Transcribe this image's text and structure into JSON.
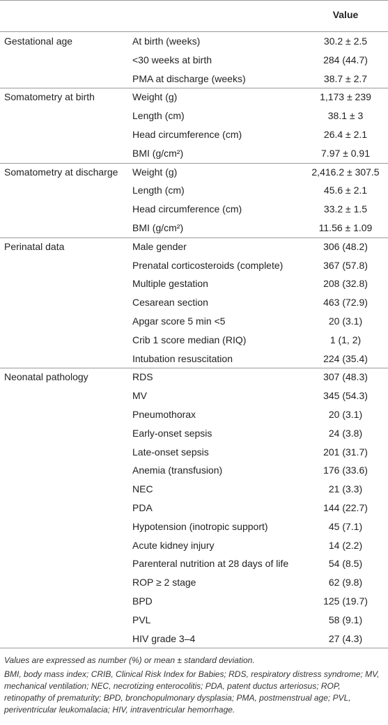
{
  "table": {
    "value_header": "Value",
    "groups": [
      {
        "label": "Gestational age",
        "rows": [
          [
            "At birth (weeks)",
            "30.2 ± 2.5"
          ],
          [
            "<30 weeks at birth",
            "284 (44.7)"
          ],
          [
            "PMA at discharge (weeks)",
            "38.7 ± 2.7"
          ]
        ]
      },
      {
        "label": "Somatometry at birth",
        "rows": [
          [
            "Weight (g)",
            "1,173 ± 239"
          ],
          [
            "Length (cm)",
            "38.1 ± 3"
          ],
          [
            "Head circumference (cm)",
            "26.4 ± 2.1"
          ],
          [
            "BMI (g/cm²)",
            "7.97 ± 0.91"
          ]
        ]
      },
      {
        "label": "Somatometry at discharge",
        "rows": [
          [
            "Weight (g)",
            "2,416.2 ± 307.5"
          ],
          [
            "Length (cm)",
            "45.6 ± 2.1"
          ],
          [
            "Head circumference (cm)",
            "33.2 ± 1.5"
          ],
          [
            "BMI (g/cm²)",
            "11.56 ± 1.09"
          ]
        ]
      },
      {
        "label": "Perinatal data",
        "rows": [
          [
            "Male gender",
            "306 (48.2)"
          ],
          [
            "Prenatal corticosteroids (complete)",
            "367 (57.8)"
          ],
          [
            "Multiple gestation",
            "208 (32.8)"
          ],
          [
            "Cesarean section",
            "463 (72.9)"
          ],
          [
            "Apgar score 5 min <5",
            "20 (3.1)"
          ],
          [
            "Crib 1 score median (RIQ)",
            "1 (1, 2)"
          ],
          [
            "Intubation resuscitation",
            "224 (35.4)"
          ]
        ]
      },
      {
        "label": "Neonatal pathology",
        "rows": [
          [
            "RDS",
            "307 (48.3)"
          ],
          [
            "MV",
            "345 (54.3)"
          ],
          [
            "Pneumothorax",
            "20 (3.1)"
          ],
          [
            "Early-onset sepsis",
            "24 (3.8)"
          ],
          [
            "Late-onset sepsis",
            "201 (31.7)"
          ],
          [
            "Anemia (transfusion)",
            "176 (33.6)"
          ],
          [
            "NEC",
            "21 (3.3)"
          ],
          [
            "PDA",
            "144 (22.7)"
          ],
          [
            "Hypotension (inotropic support)",
            "45 (7.1)"
          ],
          [
            "Acute kidney injury",
            "14 (2.2)"
          ],
          [
            "Parenteral nutrition at 28 days of life",
            "54 (8.5)"
          ],
          [
            "ROP ≥ 2 stage",
            "62 (9.8)"
          ],
          [
            "BPD",
            "125 (19.7)"
          ],
          [
            "PVL",
            "58 (9.1)"
          ],
          [
            "HIV grade 3–4",
            "27 (4.3)"
          ]
        ]
      }
    ]
  },
  "footnotes": [
    "Values are expressed as number (%) or mean ± standard deviation.",
    "BMI, body mass index; CRIB, Clinical Risk Index for Babies; RDS, respiratory distress syndrome; MV, mechanical ventilation; NEC, necrotizing enterocolitis; PDA, patent ductus arteriosus; ROP, retinopathy of prematurity; BPD, bronchopulmonary dysplasia; PMA, postmenstrual age; PVL, periventricular leukomalacia; HIV, intraventricular hemorrhage."
  ]
}
